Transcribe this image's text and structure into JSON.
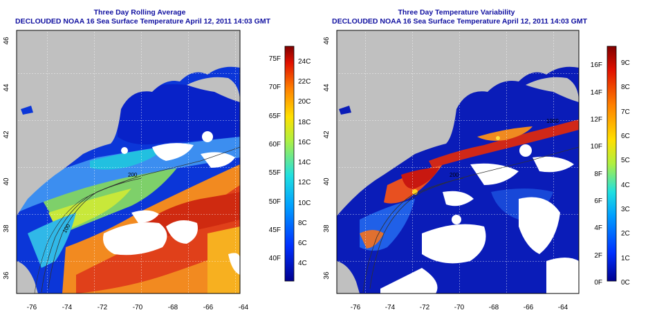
{
  "left_panel": {
    "title": "Three Day Rolling Average",
    "subtitle": "DECLOUDED NOAA 16 Sea Surface Temperature April 12, 2011 14:03 GMT",
    "x_ticks": [
      "-76",
      "-74",
      "-72",
      "-70",
      "-68",
      "-66",
      "-64"
    ],
    "y_ticks": [
      "36",
      "38",
      "40",
      "42",
      "44",
      "46"
    ],
    "colorbar_f": [
      "40F",
      "45F",
      "50F",
      "55F",
      "60F",
      "65F",
      "70F",
      "75F"
    ],
    "colorbar_c": [
      "4C",
      "6C",
      "8C",
      "10C",
      "12C",
      "14C",
      "16C",
      "18C",
      "20C",
      "22C",
      "24C"
    ],
    "contour_labels": [
      "200",
      "100",
      "1000",
      "1000"
    ]
  },
  "right_panel": {
    "title": "Three Day Temperature Variability",
    "subtitle": "DECLOUDED NOAA 16 Sea Surface Temperature April 12, 2011 14:03 GMT",
    "x_ticks": [
      "-76",
      "-74",
      "-72",
      "-70",
      "-68",
      "-66",
      "-64"
    ],
    "y_ticks": [
      "36",
      "38",
      "40",
      "42",
      "44",
      "46"
    ],
    "colorbar_f": [
      "0F",
      "2F",
      "4F",
      "6F",
      "8F",
      "10F",
      "12F",
      "14F",
      "16F"
    ],
    "colorbar_c": [
      "0C",
      "1C",
      "2C",
      "3C",
      "4C",
      "5C",
      "6C",
      "7C",
      "8C",
      "9C"
    ],
    "contour_labels": [
      "200",
      "1000"
    ]
  },
  "colors": {
    "title": "#1010a0",
    "land": "#c0c0c0",
    "cloud_mask": "#ffffff"
  }
}
